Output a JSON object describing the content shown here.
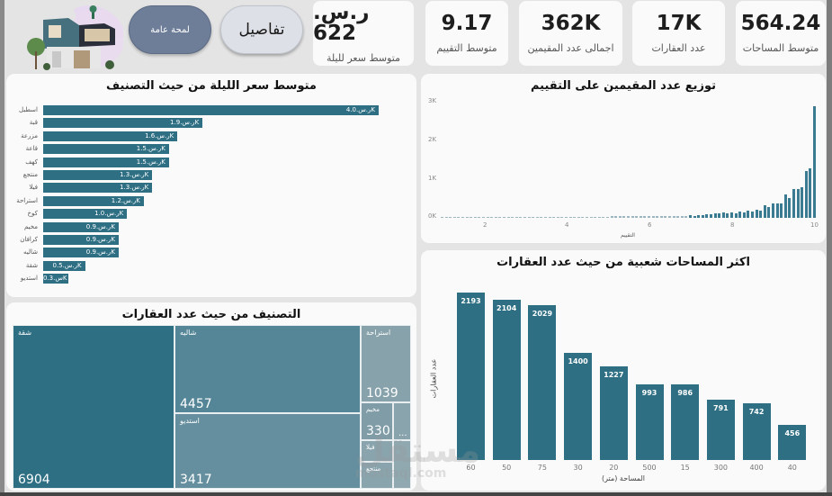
{
  "header": {
    "overview_button": "لمحة عامة",
    "details_button": "تفاصيل",
    "kpis": [
      {
        "value": "ر.س. 622",
        "label": "متوسط سعر لليلة"
      },
      {
        "value": "9.17",
        "label": "متوسط التقييم"
      },
      {
        "value": "362K",
        "label": "اجمالى عدد المقيمين"
      },
      {
        "value": "17K",
        "label": "عدد العقارات"
      },
      {
        "value": "564.24",
        "label": "متوسط المساحات"
      }
    ]
  },
  "colors": {
    "bar": "#2e6f84",
    "overview_btn": "#6e7d98",
    "panel": "#fafafa",
    "background": "#e4e4e4"
  },
  "price_chart": {
    "title": "متوسط سعر الليلة من حيث التصنيف",
    "rows": [
      {
        "label": "اسطبل",
        "text": "ر.س.4.0K"
      },
      {
        "label": "قبة",
        "text": "ر.س.1.9K"
      },
      {
        "label": "مزرعة",
        "text": "ر.س.1.6K"
      },
      {
        "label": "قاعة",
        "text": "ر.س.1.5K"
      },
      {
        "label": "كهف",
        "text": "ر.س.1.5K"
      },
      {
        "label": "منتجع",
        "text": "ر.س.1.3K"
      },
      {
        "label": "فيلا",
        "text": "ر.س.1.3K"
      },
      {
        "label": "استراحة",
        "text": "ر.س.1.2K"
      },
      {
        "label": "كوخ",
        "text": "ر.س.1.0K"
      },
      {
        "label": "مخيم",
        "text": "ر.س.0.9K"
      },
      {
        "label": "كرافان",
        "text": "ر.س.0.9K"
      },
      {
        "label": "شاليه",
        "text": "ر.س.0.9K"
      },
      {
        "label": "شقة",
        "text": "ر.س.0.5K"
      },
      {
        "label": "استديو",
        "text": "س.0.3K"
      }
    ]
  },
  "hist_chart": {
    "title": "توزيع عدد المقيمين على التقييم",
    "xlabel": "التقييم",
    "yticks": [
      "3K",
      "2K",
      "1K",
      "0K"
    ],
    "xticks": [
      "2",
      "4",
      "6",
      "8",
      "10"
    ]
  },
  "area_chart": {
    "title": "اكثر المساحات شعبية من حيث عدد العقارات",
    "xlabel": "المساحة (متر)",
    "ylabel": "عدد العقارات"
  },
  "treemap": {
    "title": "التصنيف من حيث عدد العقارات",
    "cells": [
      {
        "label": "شقة",
        "value": "6904"
      },
      {
        "label": "شاليه",
        "value": "4457"
      },
      {
        "label": "استديو",
        "value": "3417"
      },
      {
        "label": "استراحة",
        "value": "1039"
      },
      {
        "label": "مخيم",
        "value": "330"
      },
      {
        "label": "فيلا",
        "value": ""
      },
      {
        "label": "منتجع",
        "value": ""
      },
      {
        "label": "...",
        "value": ""
      }
    ]
  },
  "watermark": {
    "main": "مستقل",
    "sub": "mostaql.com"
  },
  "chart_data": [
    {
      "type": "bar",
      "orientation": "horizontal",
      "title": "متوسط سعر الليلة من حيث التصنيف",
      "categories": [
        "اسطبل",
        "قبة",
        "مزرعة",
        "قاعة",
        "كهف",
        "منتجع",
        "فيلا",
        "استراحة",
        "كوخ",
        "مخيم",
        "كرافان",
        "شاليه",
        "شقة",
        "استديو"
      ],
      "values": [
        4000,
        1900,
        1600,
        1500,
        1500,
        1300,
        1300,
        1200,
        1000,
        900,
        900,
        900,
        500,
        300
      ],
      "unit": "ر.س."
    },
    {
      "type": "bar",
      "title": "توزيع عدد المقيمين على التقييم",
      "xlabel": "التقييم",
      "ylabel": "",
      "xlim": [
        1,
        10
      ],
      "ylim": [
        0,
        3000
      ],
      "yticks": [
        "0K",
        "1K",
        "2K",
        "3K"
      ],
      "xticks": [
        2,
        4,
        6,
        8,
        10
      ],
      "x": [
        7.0,
        7.2,
        7.4,
        7.6,
        7.8,
        8.0,
        8.2,
        8.4,
        8.6,
        8.8,
        9.0,
        9.1,
        9.2,
        9.3,
        9.4,
        9.5,
        9.6,
        9.7,
        9.8,
        9.9,
        10.0
      ],
      "values": [
        60,
        80,
        100,
        110,
        130,
        150,
        170,
        200,
        220,
        320,
        380,
        370,
        380,
        620,
        530,
        760,
        760,
        800,
        1220,
        1300,
        2920
      ]
    },
    {
      "type": "bar",
      "title": "اكثر المساحات شعبية من حيث عدد العقارات",
      "xlabel": "المساحة (متر)",
      "ylabel": "عدد العقارات",
      "categories": [
        "60",
        "50",
        "75",
        "30",
        "20",
        "500",
        "15",
        "300",
        "400",
        "40"
      ],
      "values": [
        2193,
        2104,
        2029,
        1400,
        1227,
        993,
        986,
        791,
        742,
        456
      ]
    },
    {
      "type": "treemap",
      "title": "التصنيف من حيث عدد العقارات",
      "categories": [
        "شقة",
        "شاليه",
        "استديو",
        "استراحة",
        "مخيم"
      ],
      "values": [
        6904,
        4457,
        3417,
        1039,
        330
      ]
    }
  ]
}
